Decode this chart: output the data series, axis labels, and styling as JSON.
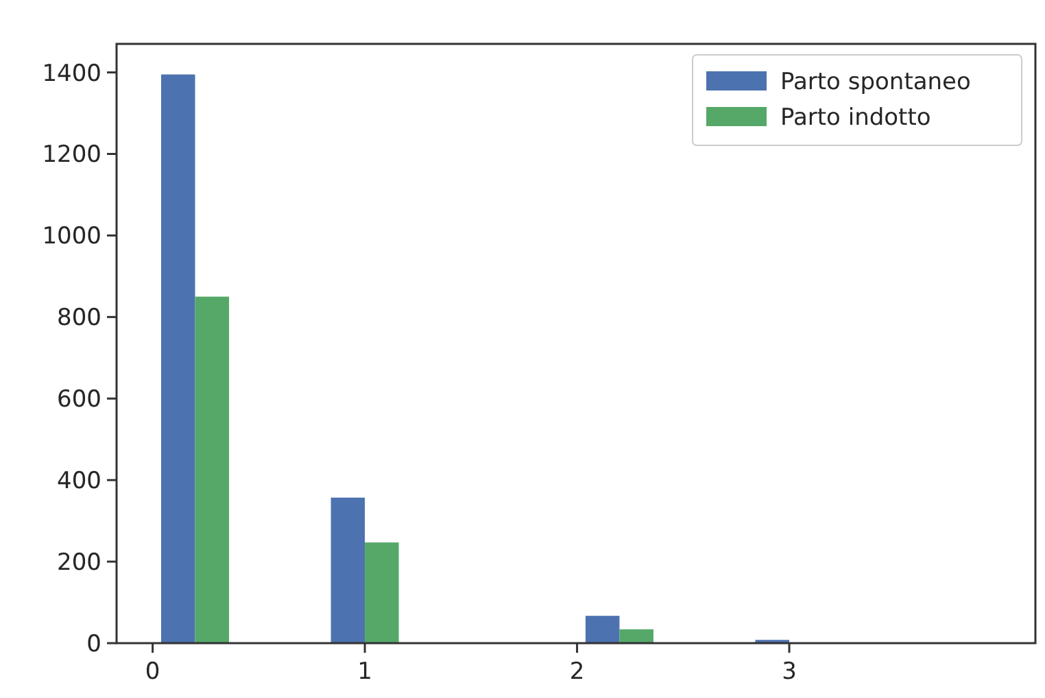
{
  "chart_data": {
    "type": "histogram",
    "bins": [
      0,
      0.4,
      0.8,
      1.2,
      1.6,
      2.0,
      2.4,
      2.8,
      3.2,
      3.6,
      4.0
    ],
    "series": [
      {
        "name": "Parto spontaneo",
        "color": "#4c72b0",
        "values": [
          1395,
          0,
          357,
          0,
          0,
          67,
          0,
          8,
          0,
          0
        ]
      },
      {
        "name": "Parto indotto",
        "color": "#55a868",
        "values": [
          850,
          0,
          247,
          0,
          0,
          34,
          0,
          0,
          0,
          0
        ]
      }
    ],
    "xlim": [
      -0.17,
      4.16
    ],
    "xticks": [
      0,
      1,
      2,
      3
    ],
    "ylim": [
      0,
      1470
    ],
    "yticks": [
      0,
      200,
      400,
      600,
      800,
      1000,
      1200,
      1400
    ],
    "grid": false,
    "legend": "top right"
  }
}
